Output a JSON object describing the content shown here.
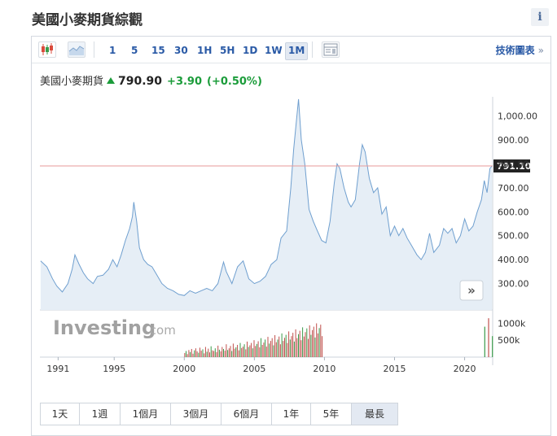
{
  "page": {
    "title": "美國小麥期貨綜觀",
    "info_label": "i"
  },
  "toolbar": {
    "intervals": [
      "1",
      "5",
      "15",
      "30",
      "1H",
      "5H",
      "1D",
      "1W",
      "1M"
    ],
    "active_interval": "1M",
    "advanced_label": "技術圖表",
    "advanced_chevron": "»"
  },
  "quote": {
    "name": "美國小麥期貨",
    "price": "790.90",
    "change": "+3.90",
    "change_pct": "(+0.50%)",
    "up_color": "#1b9c3a"
  },
  "watermark": {
    "brand": "Investing",
    "suffix": ".com"
  },
  "range_buttons": [
    "1天",
    "1週",
    "1個月",
    "3個月",
    "6個月",
    "1年",
    "5年",
    "最長"
  ],
  "active_range": "最長",
  "scroll_label": "»",
  "chart_data": {
    "type": "area",
    "x_ticks": [
      "1991",
      "1995",
      "2000",
      "2005",
      "2010",
      "2015",
      "2020"
    ],
    "xlim": [
      1989.7,
      2022.0
    ],
    "y_ticks": [
      "1,000.00",
      "900.00",
      "800.00",
      "700.00",
      "600.00",
      "500.00",
      "400.00",
      "300.00"
    ],
    "ylim": [
      190,
      1080
    ],
    "last_value": 791.1,
    "last_value_label": "791.10",
    "line_color": "#6f9fcf",
    "area_color": "#e6eef6",
    "last_line_color": "#e79a9a",
    "series": [
      {
        "values": [
          [
            1989.75,
            395
          ],
          [
            1990.2,
            370
          ],
          [
            1990.6,
            320
          ],
          [
            1990.9,
            290
          ],
          [
            1991.3,
            265
          ],
          [
            1991.7,
            300
          ],
          [
            1992.0,
            360
          ],
          [
            1992.2,
            420
          ],
          [
            1992.5,
            380
          ],
          [
            1992.8,
            345
          ],
          [
            1993.1,
            320
          ],
          [
            1993.5,
            300
          ],
          [
            1993.8,
            330
          ],
          [
            1994.2,
            335
          ],
          [
            1994.6,
            360
          ],
          [
            1994.9,
            400
          ],
          [
            1995.2,
            370
          ],
          [
            1995.5,
            420
          ],
          [
            1995.8,
            480
          ],
          [
            1996.1,
            530
          ],
          [
            1996.3,
            580
          ],
          [
            1996.4,
            640
          ],
          [
            1996.6,
            560
          ],
          [
            1996.8,
            450
          ],
          [
            1997.1,
            400
          ],
          [
            1997.4,
            380
          ],
          [
            1997.7,
            370
          ],
          [
            1998.0,
            340
          ],
          [
            1998.4,
            300
          ],
          [
            1998.8,
            280
          ],
          [
            1999.2,
            270
          ],
          [
            1999.6,
            255
          ],
          [
            2000.0,
            250
          ],
          [
            2000.4,
            270
          ],
          [
            2000.8,
            260
          ],
          [
            2001.2,
            270
          ],
          [
            2001.6,
            280
          ],
          [
            2002.0,
            270
          ],
          [
            2002.4,
            300
          ],
          [
            2002.8,
            390
          ],
          [
            2003.0,
            350
          ],
          [
            2003.4,
            300
          ],
          [
            2003.8,
            370
          ],
          [
            2004.2,
            395
          ],
          [
            2004.6,
            320
          ],
          [
            2005.0,
            300
          ],
          [
            2005.4,
            310
          ],
          [
            2005.8,
            330
          ],
          [
            2006.2,
            380
          ],
          [
            2006.6,
            400
          ],
          [
            2006.9,
            490
          ],
          [
            2007.3,
            520
          ],
          [
            2007.6,
            700
          ],
          [
            2007.8,
            860
          ],
          [
            2008.0,
            980
          ],
          [
            2008.15,
            1070
          ],
          [
            2008.35,
            900
          ],
          [
            2008.6,
            800
          ],
          [
            2008.9,
            610
          ],
          [
            2009.2,
            560
          ],
          [
            2009.5,
            520
          ],
          [
            2009.8,
            480
          ],
          [
            2010.1,
            470
          ],
          [
            2010.4,
            560
          ],
          [
            2010.7,
            720
          ],
          [
            2010.9,
            800
          ],
          [
            2011.1,
            780
          ],
          [
            2011.4,
            700
          ],
          [
            2011.7,
            640
          ],
          [
            2011.9,
            620
          ],
          [
            2012.2,
            650
          ],
          [
            2012.5,
            800
          ],
          [
            2012.7,
            880
          ],
          [
            2012.9,
            850
          ],
          [
            2013.2,
            740
          ],
          [
            2013.5,
            680
          ],
          [
            2013.8,
            700
          ],
          [
            2014.1,
            590
          ],
          [
            2014.4,
            620
          ],
          [
            2014.7,
            500
          ],
          [
            2015.0,
            540
          ],
          [
            2015.3,
            500
          ],
          [
            2015.6,
            530
          ],
          [
            2015.9,
            490
          ],
          [
            2016.2,
            460
          ],
          [
            2016.6,
            420
          ],
          [
            2016.9,
            400
          ],
          [
            2017.2,
            430
          ],
          [
            2017.5,
            510
          ],
          [
            2017.8,
            430
          ],
          [
            2018.2,
            460
          ],
          [
            2018.5,
            530
          ],
          [
            2018.8,
            510
          ],
          [
            2019.1,
            530
          ],
          [
            2019.4,
            470
          ],
          [
            2019.7,
            500
          ],
          [
            2020.0,
            570
          ],
          [
            2020.3,
            520
          ],
          [
            2020.6,
            540
          ],
          [
            2020.9,
            600
          ],
          [
            2021.2,
            650
          ],
          [
            2021.4,
            730
          ],
          [
            2021.6,
            680
          ],
          [
            2021.8,
            780
          ],
          [
            2021.95,
            791.1
          ]
        ]
      }
    ],
    "volume": {
      "y_ticks": [
        "1000k",
        "500k"
      ],
      "ylim": [
        0,
        1300
      ],
      "start": 2000.0,
      "end": 2009.8,
      "values": [
        120,
        180,
        90,
        210,
        150,
        240,
        100,
        200,
        260,
        170,
        130,
        280,
        190,
        230,
        110,
        300,
        160,
        250,
        140,
        320,
        200,
        180,
        260,
        150,
        340,
        220,
        170,
        300,
        240,
        190,
        380,
        210,
        260,
        330,
        180,
        400,
        250,
        290,
        360,
        200,
        420,
        270,
        310,
        380,
        230,
        460,
        300,
        350,
        420,
        260,
        500,
        330,
        390,
        470,
        290,
        560,
        360,
        430,
        520,
        310,
        600,
        400,
        480,
        560,
        350,
        650,
        440,
        520,
        610,
        380,
        700,
        480,
        570,
        660,
        420,
        760,
        520,
        620,
        720,
        460,
        820,
        560,
        680,
        780,
        500,
        880,
        610,
        740,
        850,
        540,
        940,
        660,
        800,
        900,
        580,
        1000,
        700,
        860,
        960,
        620
      ],
      "recent": {
        "start": 2021.4,
        "end": 2021.95,
        "values": [
          900,
          1150,
          620
        ]
      }
    }
  }
}
